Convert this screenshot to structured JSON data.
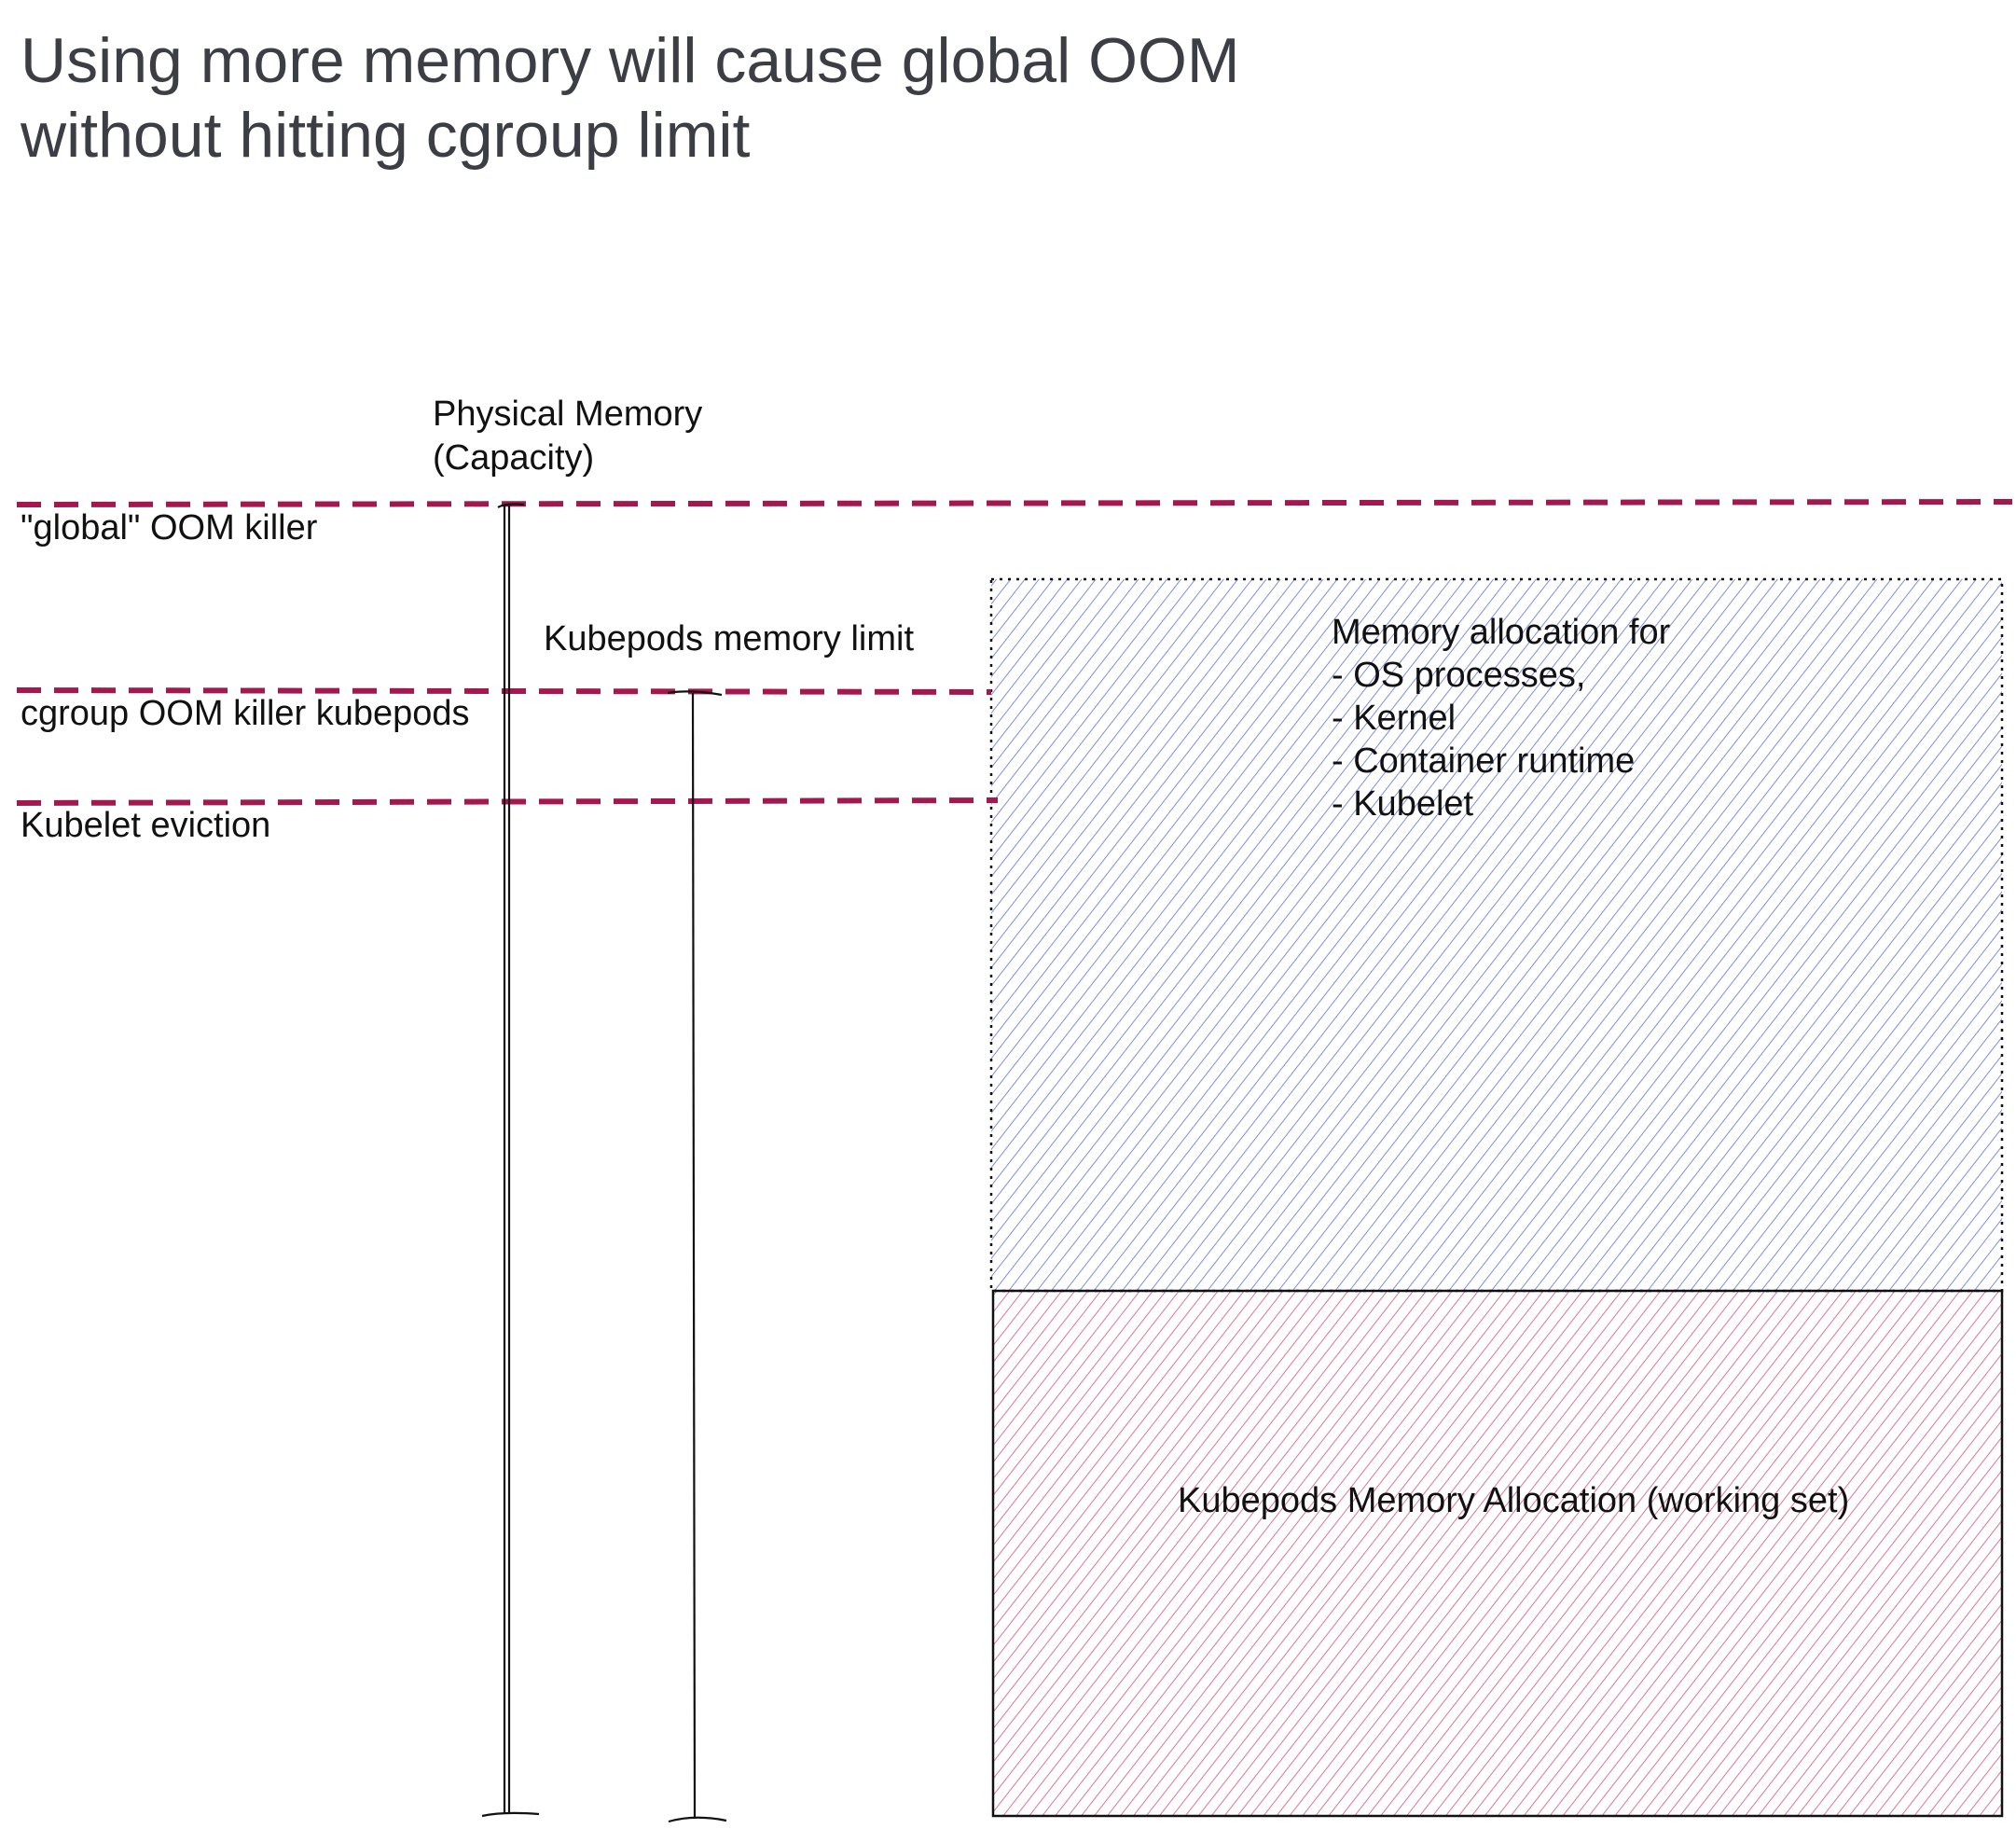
{
  "title": {
    "line1": "Using more memory will cause global OOM",
    "line2": "without hitting cgroup limit"
  },
  "thresholds": {
    "global_oom": "\"global\" OOM killer",
    "cgroup_oom": "cgroup OOM killer kubepods",
    "kubelet_eviction": "Kubelet eviction"
  },
  "bars": {
    "physical_memory": {
      "line1": "Physical Memory",
      "line2": "(Capacity)"
    },
    "kubepods_limit": "Kubepods memory limit"
  },
  "regions": {
    "system_reserved": {
      "heading": "Memory allocation for",
      "items": [
        "- OS processes,",
        "- Kernel",
        "- Container runtime",
        "- Kubelet"
      ]
    },
    "kubepods_allocation": "Kubepods Memory Allocation (working set)"
  },
  "colors": {
    "threshold_line": "#a3194f",
    "system_hatch": "#5a72e0",
    "kubepods_hatch": "#d8507f",
    "title_text": "#3b3f45",
    "label_text": "#111111"
  }
}
